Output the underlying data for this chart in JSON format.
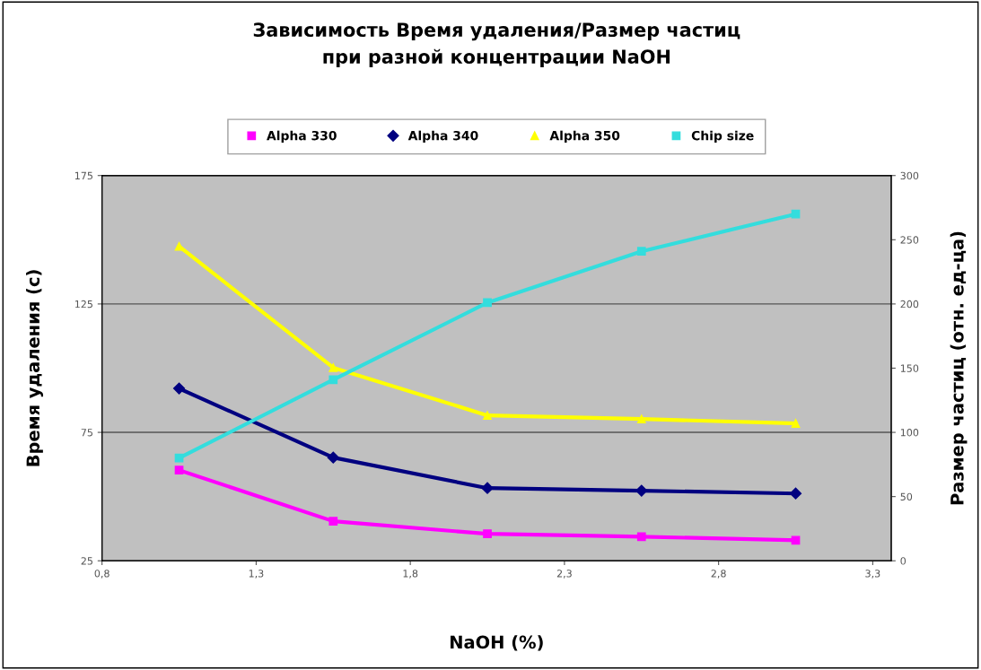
{
  "chart_data": {
    "type": "line",
    "title": "Зависимость Время удаления/Размер частиц\nпри разной концентрации NaOH",
    "xlabel": "NaOH (%)",
    "ylabel": "Время удаления (с)",
    "y2label": "Размер частиц (отн. ед-ца)",
    "x": [
      1.05,
      1.55,
      2.05,
      2.55,
      3.05
    ],
    "series": [
      {
        "name": "Alpha 330",
        "color": "#ff00ff",
        "marker": "square",
        "values": [
          60.3,
          40.4,
          35.5,
          34.4,
          33.0
        ]
      },
      {
        "name": "Alpha 340",
        "color": "#000080",
        "marker": "diamond",
        "values": [
          92.1,
          65.2,
          53.3,
          52.3,
          51.2
        ]
      },
      {
        "name": "Alpha 350",
        "color": "#ffff00",
        "marker": "triangle",
        "values": [
          147.4,
          100.2,
          81.6,
          80.2,
          78.5
        ]
      },
      {
        "name": "Chip size",
        "color": "#33dddd",
        "marker": "square",
        "axis": "y2",
        "values": [
          80,
          141,
          201,
          241,
          270
        ]
      }
    ],
    "xlim": [
      0.8,
      3.36
    ],
    "xticks": [
      {
        "value": 0.8,
        "label": "0,8"
      },
      {
        "value": 1.3,
        "label": "1,3"
      },
      {
        "value": 1.8,
        "label": "1,8"
      },
      {
        "value": 2.3,
        "label": "2,3"
      },
      {
        "value": 2.8,
        "label": "2,8"
      },
      {
        "value": 3.3,
        "label": "3,3"
      }
    ],
    "ylim": [
      25,
      175
    ],
    "yticks": [
      25,
      75,
      125,
      175
    ],
    "y2lim": [
      0,
      300
    ],
    "y2ticks": [
      0,
      50,
      100,
      150,
      200,
      250,
      300
    ],
    "grid": "y",
    "legend": "top",
    "line_style": "solid"
  }
}
